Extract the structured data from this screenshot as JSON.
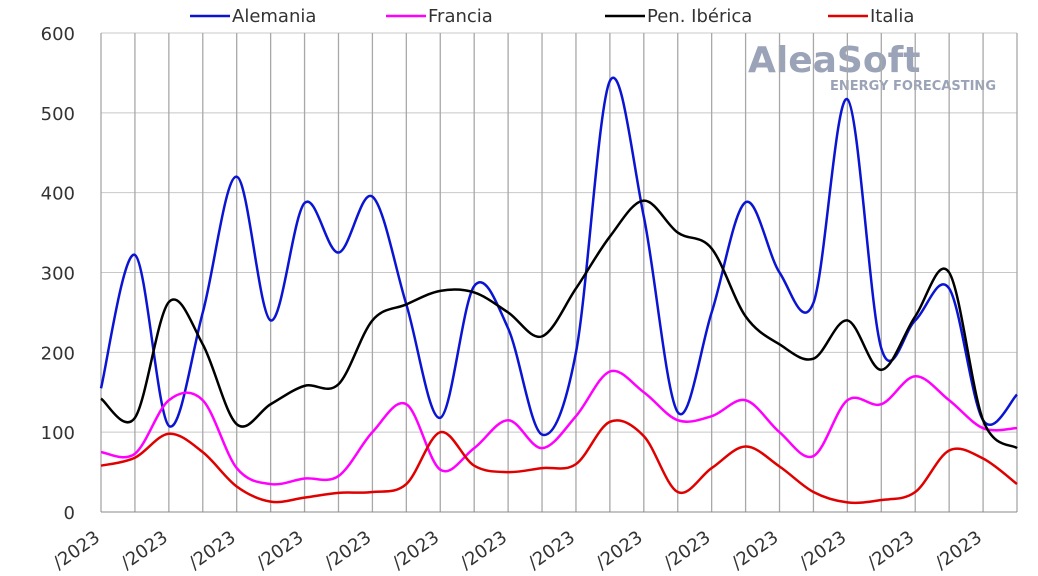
{
  "chart_data": {
    "type": "line",
    "watermark": {
      "brand": "AleaSoft",
      "tagline": "ENERGY FORECASTING"
    },
    "categories": [
      "/2023",
      null,
      "/2023",
      null,
      "/2023",
      null,
      "/2023",
      null,
      "/2023",
      null,
      "/2023",
      null,
      "/2023",
      null,
      "/2023",
      null,
      "/2023",
      null,
      "/2023",
      null,
      "/2023",
      null,
      "/2023",
      null,
      "/2023",
      null,
      "/2023",
      null
    ],
    "series": [
      {
        "name": "Alemania",
        "color": "#0a14d2",
        "values": [
          155,
          322,
          108,
          250,
          420,
          240,
          387,
          325,
          395,
          260,
          118,
          283,
          230,
          97,
          200,
          540,
          370,
          125,
          250,
          388,
          300,
          262,
          517,
          205,
          240,
          280,
          115,
          147
        ]
      },
      {
        "name": "Francia",
        "color": "#ff00ff",
        "values": [
          75,
          73,
          140,
          140,
          55,
          35,
          42,
          45,
          100,
          135,
          53,
          80,
          115,
          80,
          120,
          176,
          150,
          115,
          120,
          140,
          100,
          70,
          140,
          135,
          170,
          140,
          105,
          105
        ]
      },
      {
        "name": "Pen. Ibérica",
        "color": "#000000",
        "values": [
          142,
          118,
          263,
          210,
          110,
          135,
          158,
          160,
          240,
          260,
          277,
          275,
          250,
          220,
          280,
          345,
          390,
          350,
          330,
          245,
          210,
          192,
          240,
          178,
          245,
          300,
          115,
          80
        ]
      },
      {
        "name": "Italia",
        "color": "#e00000",
        "values": [
          58,
          68,
          98,
          75,
          32,
          13,
          18,
          24,
          25,
          35,
          100,
          58,
          50,
          55,
          60,
          113,
          95,
          25,
          55,
          82,
          57,
          25,
          12,
          15,
          25,
          77,
          67,
          35
        ]
      }
    ],
    "ylim": [
      0,
      600
    ],
    "yticks": [
      0,
      100,
      200,
      300,
      400,
      500,
      600
    ],
    "grid": true,
    "legend": "top"
  }
}
